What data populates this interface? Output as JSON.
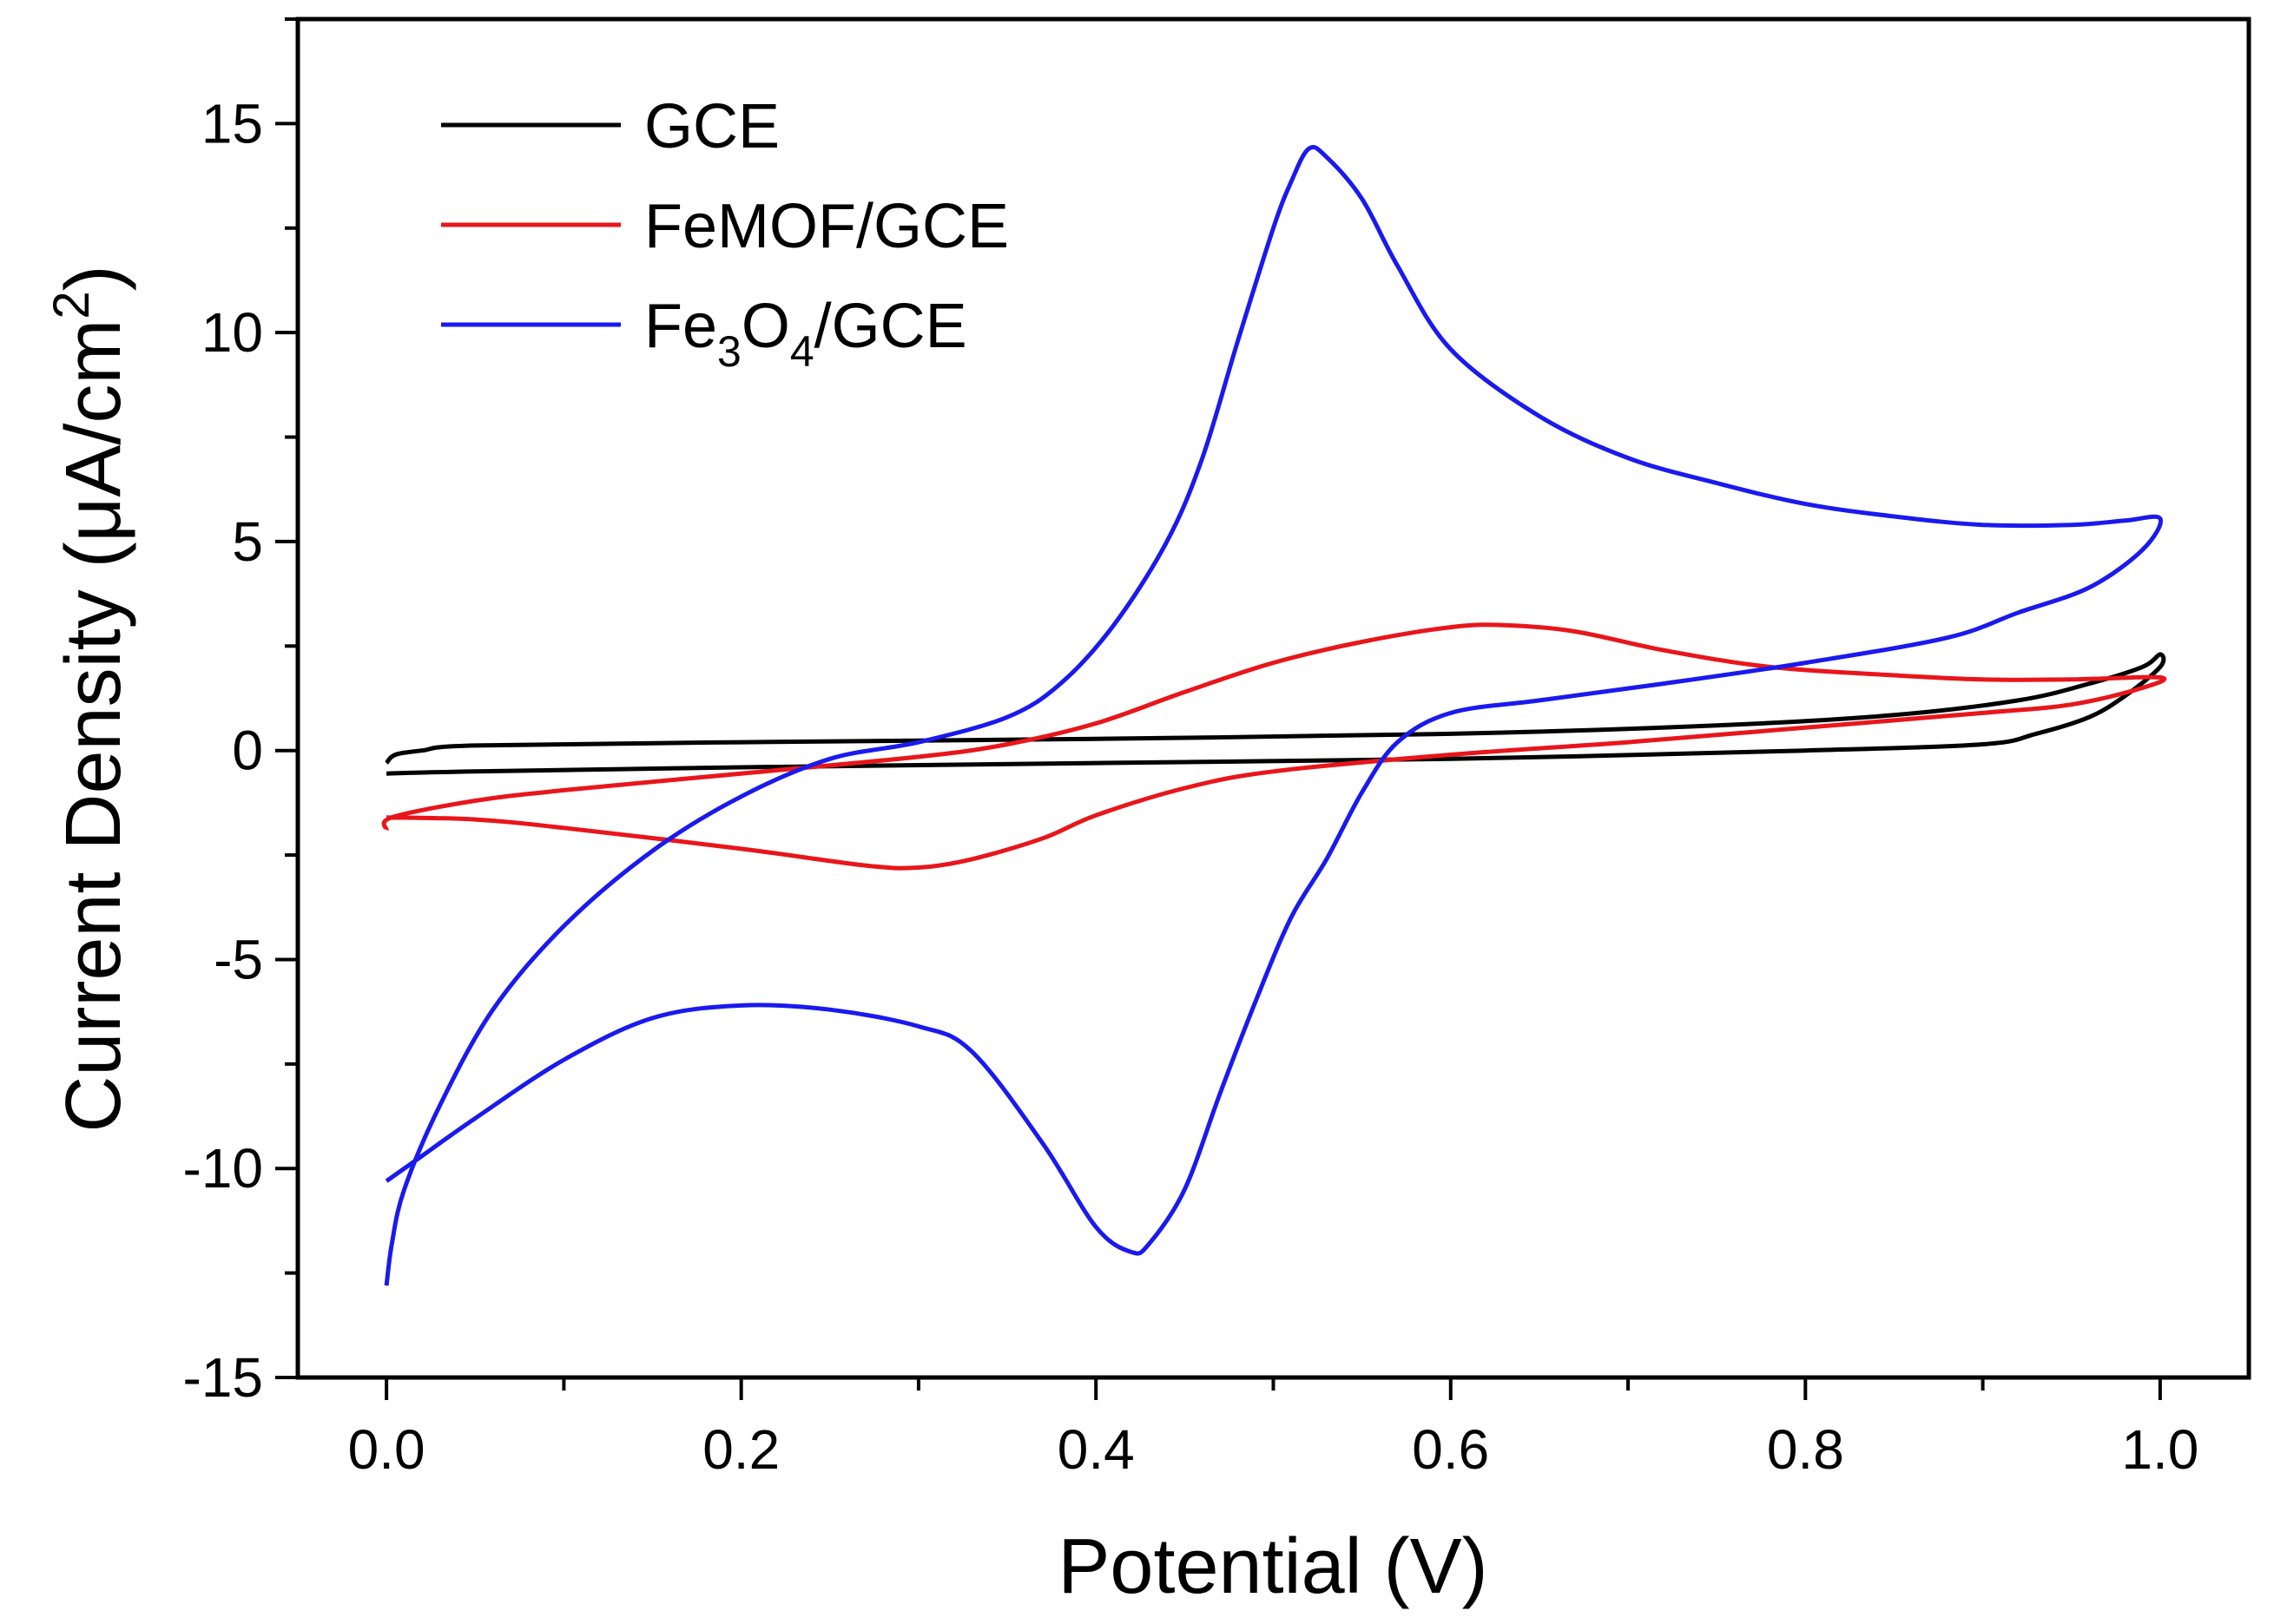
{
  "chart_data": {
    "type": "line",
    "title": "",
    "xlabel": "Potential (V)",
    "ylabel": "Current Density (μA/cm²)",
    "ylabel_parts": {
      "main": "Current Density (μA/cm",
      "sup": "2",
      "close": ")"
    },
    "xlim": [
      -0.05,
      1.05
    ],
    "ylim": [
      -15,
      17.5
    ],
    "xticks": [
      0.0,
      0.2,
      0.4,
      0.6,
      0.8,
      1.0
    ],
    "xtick_labels": [
      "0.0",
      "0.2",
      "0.4",
      "0.6",
      "0.8",
      "1.0"
    ],
    "yticks": [
      -15,
      -10,
      -5,
      0,
      5,
      10,
      15
    ],
    "ytick_labels": [
      "-15",
      "-10",
      "-5",
      "0",
      "5",
      "10",
      "15"
    ],
    "grid": false,
    "legend_position": "top-left",
    "series": [
      {
        "name": "GCE",
        "legend": {
          "main": "GCE"
        },
        "color": "#000000",
        "points": [
          [
            0.0,
            -0.3
          ],
          [
            0.005,
            -0.1
          ],
          [
            0.02,
            0.0
          ],
          [
            0.05,
            0.12
          ],
          [
            0.2,
            0.2
          ],
          [
            0.4,
            0.28
          ],
          [
            0.6,
            0.4
          ],
          [
            0.75,
            0.6
          ],
          [
            0.85,
            0.85
          ],
          [
            0.92,
            1.2
          ],
          [
            0.96,
            1.6
          ],
          [
            0.99,
            2.0
          ],
          [
            1.0,
            2.3
          ],
          [
            1.0,
            2.0
          ],
          [
            0.98,
            1.3
          ],
          [
            0.96,
            0.8
          ],
          [
            0.93,
            0.4
          ],
          [
            0.9,
            0.15
          ],
          [
            0.8,
            0.0
          ],
          [
            0.6,
            -0.2
          ],
          [
            0.4,
            -0.3
          ],
          [
            0.2,
            -0.4
          ],
          [
            0.05,
            -0.5
          ],
          [
            0.0,
            -0.55
          ]
        ]
      },
      {
        "name": "FeMOF/GCE",
        "legend": {
          "main": "FeMOF/GCE"
        },
        "color": "#e8161b",
        "points": [
          [
            0.0,
            -1.9
          ],
          [
            0.003,
            -1.6
          ],
          [
            0.05,
            -1.2
          ],
          [
            0.1,
            -0.95
          ],
          [
            0.2,
            -0.55
          ],
          [
            0.3,
            -0.15
          ],
          [
            0.35,
            0.15
          ],
          [
            0.4,
            0.65
          ],
          [
            0.45,
            1.4
          ],
          [
            0.5,
            2.1
          ],
          [
            0.55,
            2.6
          ],
          [
            0.6,
            2.95
          ],
          [
            0.63,
            3.0
          ],
          [
            0.67,
            2.85
          ],
          [
            0.72,
            2.4
          ],
          [
            0.78,
            2.0
          ],
          [
            0.85,
            1.8
          ],
          [
            0.9,
            1.7
          ],
          [
            0.95,
            1.7
          ],
          [
            1.0,
            1.75
          ],
          [
            0.99,
            1.5
          ],
          [
            0.95,
            1.1
          ],
          [
            0.9,
            0.9
          ],
          [
            0.8,
            0.55
          ],
          [
            0.7,
            0.2
          ],
          [
            0.6,
            -0.1
          ],
          [
            0.5,
            -0.5
          ],
          [
            0.45,
            -0.9
          ],
          [
            0.4,
            -1.55
          ],
          [
            0.37,
            -2.1
          ],
          [
            0.33,
            -2.6
          ],
          [
            0.3,
            -2.8
          ],
          [
            0.27,
            -2.75
          ],
          [
            0.2,
            -2.35
          ],
          [
            0.1,
            -1.85
          ],
          [
            0.05,
            -1.65
          ],
          [
            0.0,
            -1.6
          ]
        ]
      },
      {
        "name": "Fe₃O₄/GCE",
        "legend": {
          "main": "Fe",
          "sub1": "3",
          "mid": "O",
          "sub2": "4",
          "end": "/GCE"
        },
        "color": "#1a1aee",
        "points": [
          [
            0.0,
            -12.8
          ],
          [
            0.003,
            -11.8
          ],
          [
            0.01,
            -10.5
          ],
          [
            0.03,
            -8.5
          ],
          [
            0.06,
            -6.2
          ],
          [
            0.1,
            -4.2
          ],
          [
            0.15,
            -2.4
          ],
          [
            0.2,
            -1.1
          ],
          [
            0.25,
            -0.2
          ],
          [
            0.3,
            0.2
          ],
          [
            0.35,
            0.8
          ],
          [
            0.38,
            1.6
          ],
          [
            0.41,
            3.0
          ],
          [
            0.44,
            5.0
          ],
          [
            0.46,
            7.0
          ],
          [
            0.48,
            9.8
          ],
          [
            0.5,
            12.5
          ],
          [
            0.51,
            13.6
          ],
          [
            0.52,
            14.4
          ],
          [
            0.53,
            14.2
          ],
          [
            0.55,
            13.2
          ],
          [
            0.57,
            11.6
          ],
          [
            0.6,
            9.6
          ],
          [
            0.65,
            8.0
          ],
          [
            0.7,
            7.0
          ],
          [
            0.75,
            6.4
          ],
          [
            0.8,
            5.9
          ],
          [
            0.85,
            5.6
          ],
          [
            0.9,
            5.4
          ],
          [
            0.95,
            5.4
          ],
          [
            0.98,
            5.5
          ],
          [
            1.0,
            5.55
          ],
          [
            0.99,
            4.8
          ],
          [
            0.96,
            3.9
          ],
          [
            0.92,
            3.3
          ],
          [
            0.88,
            2.7
          ],
          [
            0.8,
            2.1
          ],
          [
            0.72,
            1.6
          ],
          [
            0.65,
            1.2
          ],
          [
            0.6,
            0.9
          ],
          [
            0.57,
            0.2
          ],
          [
            0.55,
            -1.0
          ],
          [
            0.53,
            -2.6
          ],
          [
            0.51,
            -4.0
          ],
          [
            0.49,
            -6.0
          ],
          [
            0.47,
            -8.2
          ],
          [
            0.45,
            -10.5
          ],
          [
            0.43,
            -11.8
          ],
          [
            0.42,
            -12.0
          ],
          [
            0.4,
            -11.4
          ],
          [
            0.37,
            -9.4
          ],
          [
            0.33,
            -7.2
          ],
          [
            0.3,
            -6.6
          ],
          [
            0.25,
            -6.2
          ],
          [
            0.2,
            -6.1
          ],
          [
            0.15,
            -6.4
          ],
          [
            0.1,
            -7.4
          ],
          [
            0.05,
            -8.8
          ],
          [
            0.02,
            -9.7
          ],
          [
            0.0,
            -10.3
          ]
        ]
      }
    ]
  }
}
